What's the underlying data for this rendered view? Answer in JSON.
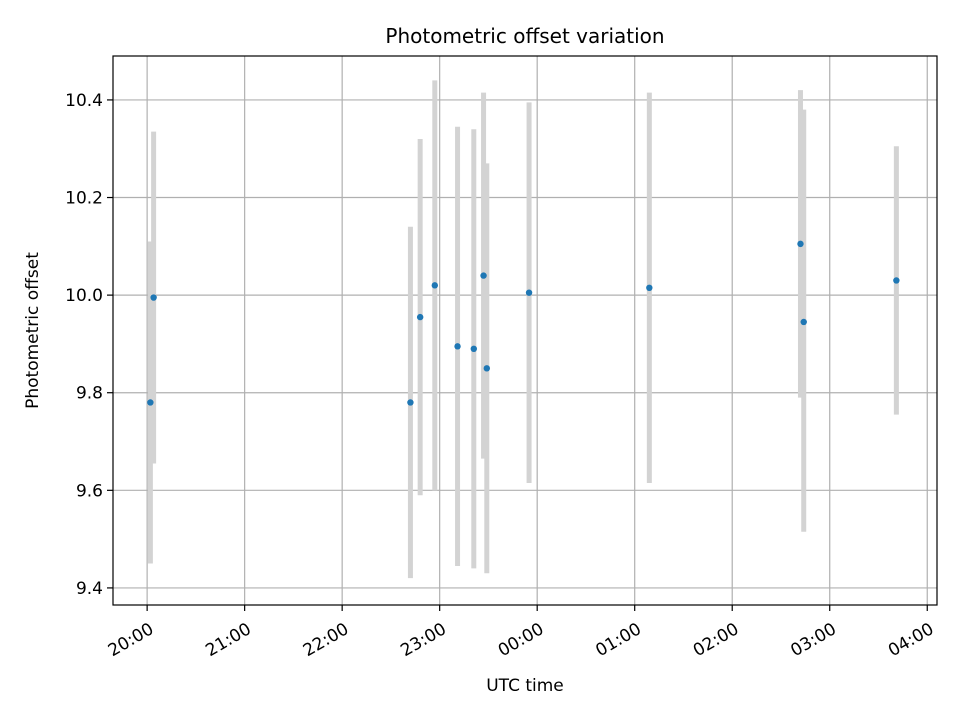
{
  "colors": {
    "point": "#1f77b4",
    "errorbar": "#d3d3d3",
    "grid": "#b0b0b0",
    "axis": "#000000"
  },
  "chart_data": {
    "type": "scatter",
    "title": "Photometric offset variation",
    "xlabel": "UTC time",
    "ylabel": "Photometric offset",
    "x_units": "hours_from_20:00",
    "xlim": [
      -0.35,
      8.1
    ],
    "ylim": [
      9.365,
      10.49
    ],
    "xticks": [
      {
        "value": 0,
        "label": "20:00"
      },
      {
        "value": 1,
        "label": "21:00"
      },
      {
        "value": 2,
        "label": "22:00"
      },
      {
        "value": 3,
        "label": "23:00"
      },
      {
        "value": 4,
        "label": "00:00"
      },
      {
        "value": 5,
        "label": "01:00"
      },
      {
        "value": 6,
        "label": "02:00"
      },
      {
        "value": 7,
        "label": "03:00"
      },
      {
        "value": 8,
        "label": "04:00"
      }
    ],
    "yticks": [
      {
        "value": 9.4,
        "label": "9.4"
      },
      {
        "value": 9.6,
        "label": "9.6"
      },
      {
        "value": 9.8,
        "label": "9.8"
      },
      {
        "value": 10.0,
        "label": "10.0"
      },
      {
        "value": 10.2,
        "label": "10.2"
      },
      {
        "value": 10.4,
        "label": "10.4"
      }
    ],
    "grid": true,
    "points": [
      {
        "time": "20:02",
        "y": 9.78,
        "err_low": 9.45,
        "err_high": 10.11
      },
      {
        "time": "20:04",
        "y": 9.995,
        "err_low": 9.655,
        "err_high": 10.335
      },
      {
        "time": "22:42",
        "y": 9.78,
        "err_low": 9.42,
        "err_high": 10.14
      },
      {
        "time": "22:48",
        "y": 9.955,
        "err_low": 9.59,
        "err_high": 10.32
      },
      {
        "time": "22:57",
        "y": 10.02,
        "err_low": 9.6,
        "err_high": 10.44
      },
      {
        "time": "23:11",
        "y": 9.895,
        "err_low": 9.445,
        "err_high": 10.345
      },
      {
        "time": "23:21",
        "y": 9.89,
        "err_low": 9.44,
        "err_high": 10.34
      },
      {
        "time": "23:27",
        "y": 10.04,
        "err_low": 9.665,
        "err_high": 10.415
      },
      {
        "time": "23:29",
        "y": 9.85,
        "err_low": 9.43,
        "err_high": 10.27
      },
      {
        "time": "23:55",
        "y": 10.005,
        "err_low": 9.615,
        "err_high": 10.395
      },
      {
        "time": "01:09",
        "y": 10.015,
        "err_low": 9.615,
        "err_high": 10.415
      },
      {
        "time": "02:42",
        "y": 10.105,
        "err_low": 9.79,
        "err_high": 10.42
      },
      {
        "time": "02:44",
        "y": 9.945,
        "err_low": 9.515,
        "err_high": 10.38
      },
      {
        "time": "03:41",
        "y": 10.03,
        "err_low": 9.755,
        "err_high": 10.305
      }
    ]
  }
}
